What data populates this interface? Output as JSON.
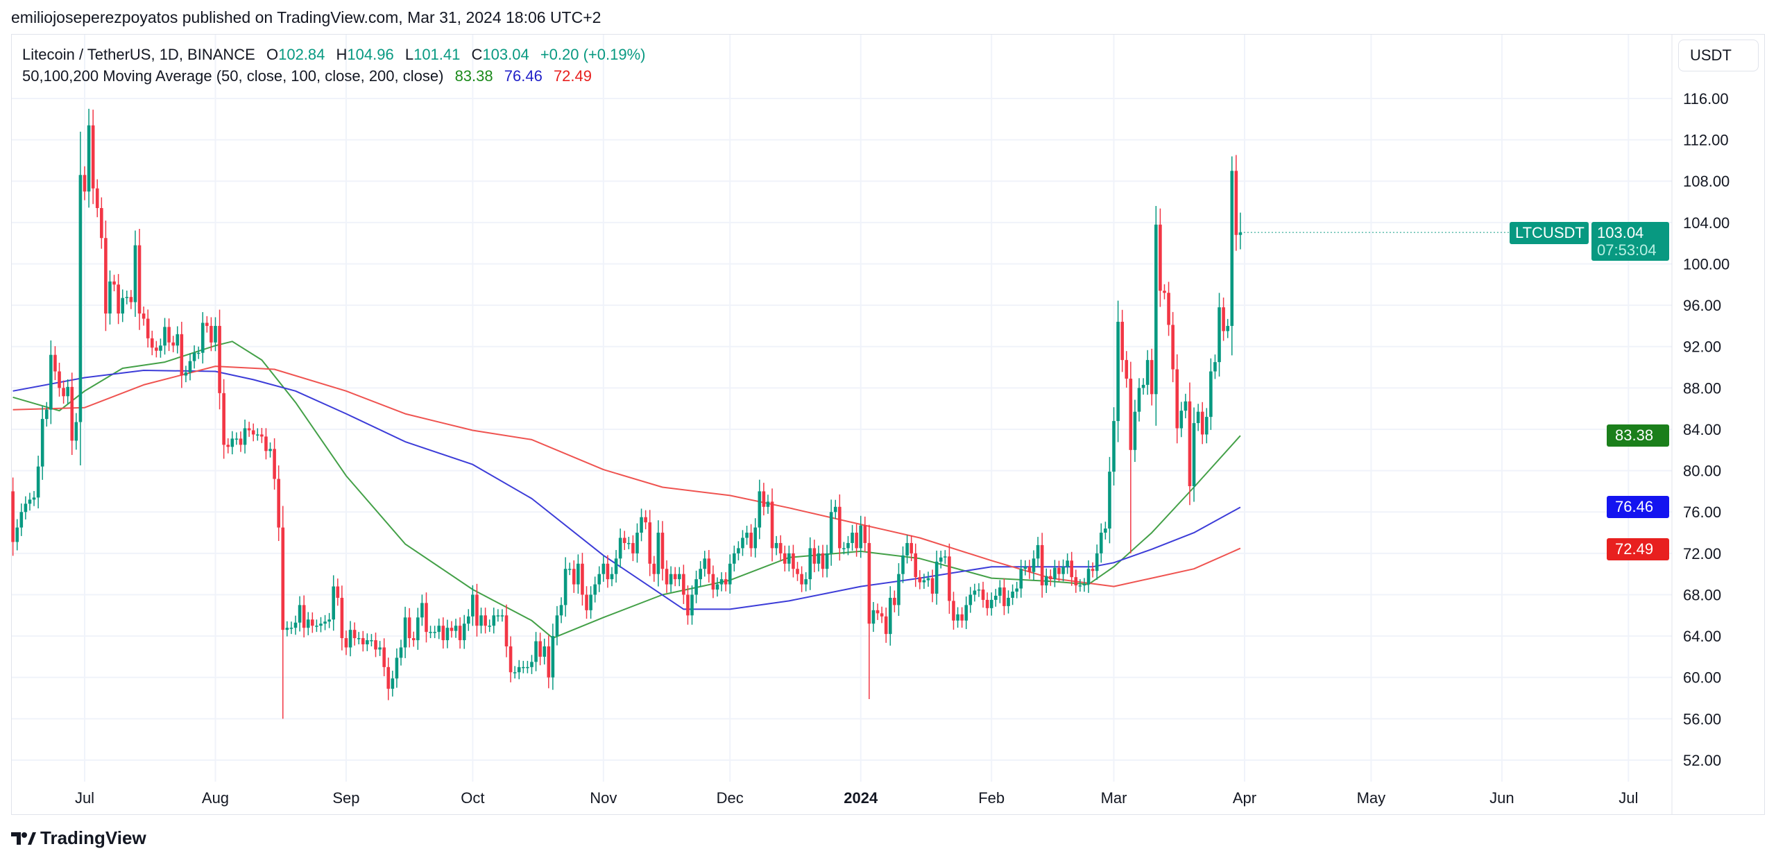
{
  "header": {
    "published": "emiliojoseperezpoyatos published on TradingView.com, Mar 31, 2024 18:06 UTC+2"
  },
  "legend": {
    "symbol": "Litecoin / TetherUS, 1D, BINANCE",
    "o_label": "O",
    "o": "102.84",
    "h_label": "H",
    "h": "104.96",
    "l_label": "L",
    "l": "101.41",
    "c_label": "C",
    "c": "103.04",
    "change": "+0.20 (+0.19%)",
    "ma_title": "50,100,200 Moving Average (50, close, 100, close, 200, close)",
    "ma50": "83.38",
    "ma100": "76.46",
    "ma200": "72.49"
  },
  "price_axis": {
    "currency": "USDT",
    "ticks": [
      "116.00",
      "112.00",
      "108.00",
      "104.00",
      "100.00",
      "96.00",
      "92.00",
      "88.00",
      "84.00",
      "80.00",
      "76.00",
      "72.00",
      "68.00",
      "64.00",
      "60.00",
      "56.00",
      "52.00"
    ]
  },
  "badges": {
    "symbol": "LTCUSDT",
    "last_price": "103.04",
    "countdown": "07:53:04",
    "ma50": "83.38",
    "ma100": "76.46",
    "ma200": "72.49"
  },
  "time_axis": {
    "labels": [
      {
        "text": "Jul",
        "date": "2023-07-01"
      },
      {
        "text": "Aug",
        "date": "2023-08-01"
      },
      {
        "text": "Sep",
        "date": "2023-09-01"
      },
      {
        "text": "Oct",
        "date": "2023-10-01"
      },
      {
        "text": "Nov",
        "date": "2023-11-01"
      },
      {
        "text": "Dec",
        "date": "2023-12-01"
      },
      {
        "text": "2024",
        "date": "2024-01-01",
        "bold": true
      },
      {
        "text": "Feb",
        "date": "2024-02-01"
      },
      {
        "text": "Mar",
        "date": "2024-03-01"
      },
      {
        "text": "Apr",
        "date": "2024-04-01"
      },
      {
        "text": "May",
        "date": "2024-05-01"
      },
      {
        "text": "Jun",
        "date": "2024-06-01"
      },
      {
        "text": "Jul",
        "date": "2024-07-01"
      }
    ]
  },
  "colors": {
    "up": "#089981",
    "down": "#f23645",
    "ma50": "#43a047",
    "ma100": "#3c3cd8",
    "ma200": "#ef5350",
    "ma50_badge": "#1b7f1b",
    "ma100_badge": "#1414f0",
    "ma200_badge": "#e8201f"
  },
  "footer": {
    "brand": "TradingView"
  },
  "chart_data": {
    "type": "candlestick",
    "title": "Litecoin / TetherUS, 1D, BINANCE",
    "start_date": "2023-06-14",
    "first_open": 78.0,
    "ylim": [
      50,
      119
    ],
    "xlim": [
      "2023-06-13",
      "2024-07-20"
    ],
    "grid": true,
    "closes": [
      73.1,
      74.5,
      76,
      76.8,
      77.2,
      77.4,
      80.4,
      85,
      85.9,
      91.2,
      89.6,
      88,
      87.2,
      88.1,
      82.9,
      84.7,
      108.6,
      107,
      113.4,
      107.3,
      105.4,
      102.5,
      95.2,
      98.3,
      98,
      95.2,
      96.7,
      96.8,
      96.3,
      101.8,
      95.2,
      94.7,
      92.8,
      91.9,
      91.6,
      92.1,
      93.9,
      92.4,
      92.1,
      93.2,
      89.2,
      89.5,
      90.6,
      91.4,
      91.4,
      94.3,
      94,
      92.4,
      94,
      87.5,
      82.5,
      82.3,
      83.1,
      83.1,
      82.5,
      84.1,
      83.9,
      83.5,
      83.5,
      83.3,
      81.9,
      82.1,
      79.2,
      74.5,
      64.6,
      64.8,
      64.8,
      65.3,
      67,
      64.8,
      65.6,
      65,
      65,
      65.2,
      65.4,
      65.6,
      68.8,
      67.7,
      63.8,
      62.9,
      64.6,
      63.8,
      63.8,
      63.2,
      63.6,
      63.6,
      62.7,
      62.9,
      61,
      58.9,
      59.9,
      61.9,
      62.9,
      65.8,
      63.8,
      63.6,
      65.8,
      67.2,
      64.4,
      64.4,
      64.4,
      65,
      63.6,
      64.8,
      64.5,
      65,
      63.6,
      65.2,
      65.9,
      68,
      65,
      66,
      65,
      65,
      66,
      66,
      66,
      63,
      60.5,
      60.5,
      61,
      61,
      61,
      61.5,
      63.5,
      62,
      63,
      60,
      64,
      66,
      67,
      70.5,
      70.5,
      69,
      71,
      68,
      66.5,
      68,
      69,
      70,
      71,
      69.5,
      70,
      71.5,
      73.5,
      73,
      73,
      72,
      74,
      75.5,
      75,
      71,
      70,
      74,
      70.5,
      69,
      70,
      69.5,
      70,
      68,
      66,
      68,
      69.5,
      70.5,
      71.5,
      70,
      68.5,
      69,
      69.5,
      69,
      71,
      72,
      72.5,
      73.5,
      74,
      72.5,
      74.5,
      78,
      76.5,
      77,
      72.5,
      73,
      72,
      71,
      72,
      70.5,
      70,
      69,
      69.5,
      72.5,
      71,
      72,
      70.5,
      72,
      76,
      76.5,
      72.5,
      72.5,
      73,
      74,
      72.5,
      74.7,
      73,
      65.2,
      66.5,
      66.2,
      65.9,
      64.2,
      67.7,
      67,
      70,
      71.8,
      73,
      72,
      69.7,
      69.2,
      69.4,
      69.6,
      68.1,
      71.2,
      71.6,
      71.7,
      67.4,
      65.5,
      66.1,
      65.5,
      67,
      68,
      68.4,
      68.5,
      67.5,
      66.7,
      67.5,
      67.9,
      68.7,
      66.9,
      67.7,
      68.3,
      68.6,
      70.5,
      70.7,
      70.2,
      71.5,
      72.8,
      68.9,
      69.8,
      69.5,
      70.6,
      70,
      70.7,
      71.3,
      69.7,
      68.9,
      68.9,
      69,
      70.5,
      70.3,
      72,
      74,
      74.4,
      79.9,
      84.8,
      94.4,
      90.7,
      88.9,
      82,
      85.7,
      88,
      88.3,
      90.7,
      87.4,
      103.8,
      97.4,
      97.2,
      94.1,
      89.8,
      84.1,
      85.8,
      86.7,
      78.5,
      84.6,
      85.7,
      83.5,
      85.2,
      89.6,
      90.5,
      95.8,
      93.5,
      94,
      109,
      102.8,
      103.04
    ],
    "wick_extremes": [
      {
        "date": "2023-07-02",
        "high": 115.0
      },
      {
        "date": "2023-08-17",
        "low": 56.0
      },
      {
        "date": "2023-09-11",
        "low": 57.8
      },
      {
        "date": "2024-01-03",
        "low": 57.9
      },
      {
        "date": "2024-03-05",
        "low": 72.0
      },
      {
        "date": "2024-03-11",
        "high": 105.6
      },
      {
        "date": "2024-03-29",
        "high": 110.4
      },
      {
        "date": "2024-03-31",
        "high": 104.96,
        "low": 101.41
      }
    ],
    "series": [
      {
        "name": "MA 50",
        "key": "ma50",
        "points": [
          [
            "2023-06-14",
            87.1
          ],
          [
            "2023-06-25",
            85.8
          ],
          [
            "2023-07-01",
            87.7
          ],
          [
            "2023-07-10",
            89.9
          ],
          [
            "2023-07-20",
            90.5
          ],
          [
            "2023-08-01",
            92.1
          ],
          [
            "2023-08-05",
            92.5
          ],
          [
            "2023-08-12",
            90.7
          ],
          [
            "2023-08-20",
            86.6
          ],
          [
            "2023-09-01",
            79.5
          ],
          [
            "2023-09-15",
            72.9
          ],
          [
            "2023-10-01",
            68.5
          ],
          [
            "2023-10-15",
            65.5
          ],
          [
            "2023-10-20",
            63.8
          ],
          [
            "2023-11-01",
            65.8
          ],
          [
            "2023-11-15",
            68
          ],
          [
            "2023-12-01",
            69.4
          ],
          [
            "2023-12-15",
            71.6
          ],
          [
            "2024-01-01",
            72.2
          ],
          [
            "2024-01-15",
            71.5
          ],
          [
            "2024-02-01",
            69.6
          ],
          [
            "2024-02-15",
            69.3
          ],
          [
            "2024-02-24",
            69
          ],
          [
            "2024-03-01",
            70.7
          ],
          [
            "2024-03-10",
            74
          ],
          [
            "2024-03-20",
            78.4
          ],
          [
            "2024-03-31",
            83.38
          ]
        ]
      },
      {
        "name": "MA 100",
        "key": "ma100",
        "points": [
          [
            "2023-06-14",
            87.7
          ],
          [
            "2023-07-01",
            89
          ],
          [
            "2023-07-15",
            89.7
          ],
          [
            "2023-08-01",
            89.6
          ],
          [
            "2023-08-10",
            88.8
          ],
          [
            "2023-08-20",
            87.7
          ],
          [
            "2023-09-01",
            85.5
          ],
          [
            "2023-09-15",
            82.8
          ],
          [
            "2023-10-01",
            80.6
          ],
          [
            "2023-10-15",
            77.3
          ],
          [
            "2023-11-01",
            71.8
          ],
          [
            "2023-11-20",
            66.6
          ],
          [
            "2023-12-01",
            66.6
          ],
          [
            "2023-12-15",
            67.4
          ],
          [
            "2024-01-01",
            68.8
          ],
          [
            "2024-01-15",
            69.6
          ],
          [
            "2024-02-01",
            70.7
          ],
          [
            "2024-02-15",
            70.7
          ],
          [
            "2024-02-25",
            70.7
          ],
          [
            "2024-03-01",
            71.1
          ],
          [
            "2024-03-10",
            72.4
          ],
          [
            "2024-03-20",
            74
          ],
          [
            "2024-03-31",
            76.46
          ]
        ]
      },
      {
        "name": "MA 200",
        "key": "ma200",
        "points": [
          [
            "2023-06-14",
            85.9
          ],
          [
            "2023-07-01",
            86.1
          ],
          [
            "2023-07-15",
            88.3
          ],
          [
            "2023-08-01",
            90.1
          ],
          [
            "2023-08-15",
            89.8
          ],
          [
            "2023-09-01",
            87.7
          ],
          [
            "2023-09-15",
            85.5
          ],
          [
            "2023-10-01",
            83.9
          ],
          [
            "2023-10-15",
            83
          ],
          [
            "2023-11-01",
            80.1
          ],
          [
            "2023-11-15",
            78.4
          ],
          [
            "2023-12-01",
            77.6
          ],
          [
            "2023-12-15",
            76.4
          ],
          [
            "2024-01-01",
            74.8
          ],
          [
            "2024-01-15",
            73.5
          ],
          [
            "2024-02-01",
            71.3
          ],
          [
            "2024-02-15",
            69.6
          ],
          [
            "2024-03-01",
            68.8
          ],
          [
            "2024-03-10",
            69.6
          ],
          [
            "2024-03-20",
            70.5
          ],
          [
            "2024-03-31",
            72.49
          ]
        ]
      }
    ]
  }
}
